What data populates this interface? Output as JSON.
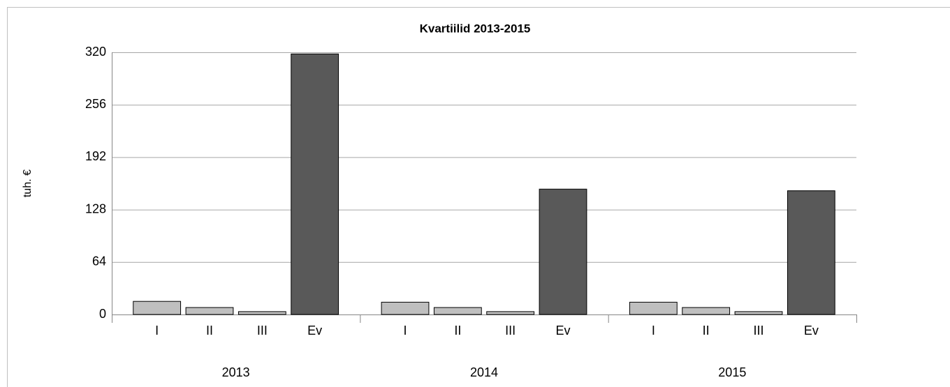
{
  "chart_data": {
    "type": "grouped_bar",
    "title": "Kvartiilid 2013-2015",
    "y_label": "tuh. €",
    "categories": [
      "I",
      "II",
      "III",
      "Ev"
    ],
    "category_colors": [
      "#bfbfbf",
      "#bfbfbf",
      "#bfbfbf",
      "#595959"
    ],
    "groups": [
      {
        "name": "2013",
        "values": [
          16,
          8.5,
          3.5,
          318
        ]
      },
      {
        "name": "2014",
        "values": [
          15,
          8.5,
          3.5,
          153
        ]
      },
      {
        "name": "2015",
        "values": [
          15,
          8.5,
          3.5,
          151
        ]
      }
    ],
    "ylim": [
      0,
      320
    ],
    "yticks": [
      0,
      64,
      128,
      192,
      256,
      320
    ],
    "grid": true
  }
}
